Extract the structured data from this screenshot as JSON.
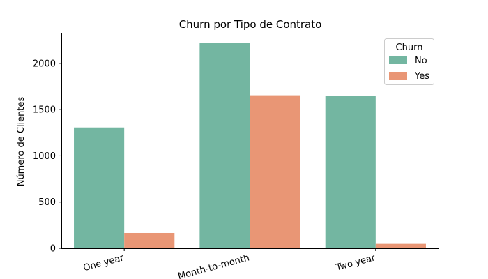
{
  "chart_data": {
    "type": "bar",
    "title": "Churn por Tipo de Contrato",
    "xlabel": "",
    "ylabel": "Número de Clientes",
    "categories": [
      "One year",
      "Month-to-month",
      "Two year"
    ],
    "series": [
      {
        "name": "No",
        "color": "#73b6a1",
        "values": [
          1307,
          2220,
          1647
        ]
      },
      {
        "name": "Yes",
        "color": "#e99675",
        "values": [
          166,
          1655,
          48
        ]
      }
    ],
    "ylim": [
      0,
      2331
    ],
    "yticks": [
      0,
      500,
      1000,
      1500,
      2000
    ],
    "legend": {
      "title": "Churn",
      "position": "top-right"
    },
    "grid": false
  }
}
